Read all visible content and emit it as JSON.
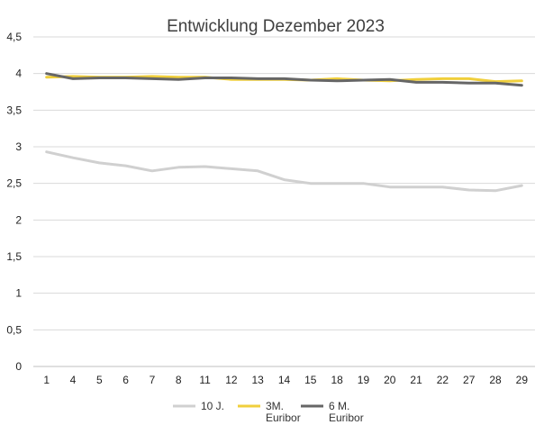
{
  "chart_data": {
    "type": "line",
    "title": "Entwicklung Dezember 2023",
    "xlabel": "",
    "ylabel": "",
    "ylim": [
      0,
      4.5
    ],
    "y_ticks": [
      "0",
      "0,5",
      "1",
      "1,5",
      "2",
      "2,5",
      "3",
      "3,5",
      "4",
      "4,5"
    ],
    "y_tick_values": [
      0,
      0.5,
      1,
      1.5,
      2,
      2.5,
      3,
      3.5,
      4,
      4.5
    ],
    "categories": [
      "1",
      "4",
      "5",
      "6",
      "7",
      "8",
      "11",
      "12",
      "13",
      "14",
      "15",
      "18",
      "19",
      "20",
      "21",
      "22",
      "27",
      "28",
      "29"
    ],
    "grid": true,
    "legend_position": "bottom",
    "series": [
      {
        "name": "10 J.",
        "color": "#d0d0d0",
        "values": [
          2.93,
          2.85,
          2.78,
          2.74,
          2.67,
          2.72,
          2.73,
          2.7,
          2.67,
          2.55,
          2.5,
          2.5,
          2.5,
          2.45,
          2.45,
          2.45,
          2.41,
          2.4,
          2.47
        ]
      },
      {
        "name": "3M. Euribor",
        "legend_lines": [
          "3M.",
          "Euribor"
        ],
        "color": "#f0cf3c",
        "values": [
          3.95,
          3.96,
          3.95,
          3.95,
          3.96,
          3.95,
          3.95,
          3.92,
          3.92,
          3.92,
          3.91,
          3.93,
          3.91,
          3.9,
          3.92,
          3.93,
          3.93,
          3.89,
          3.9
        ]
      },
      {
        "name": "6 M. Euribor",
        "legend_lines": [
          "6 M.",
          "Euribor"
        ],
        "color": "#666666",
        "values": [
          4.0,
          3.93,
          3.94,
          3.94,
          3.93,
          3.92,
          3.94,
          3.94,
          3.93,
          3.93,
          3.91,
          3.9,
          3.91,
          3.92,
          3.88,
          3.88,
          3.87,
          3.87,
          3.84
        ]
      }
    ]
  }
}
